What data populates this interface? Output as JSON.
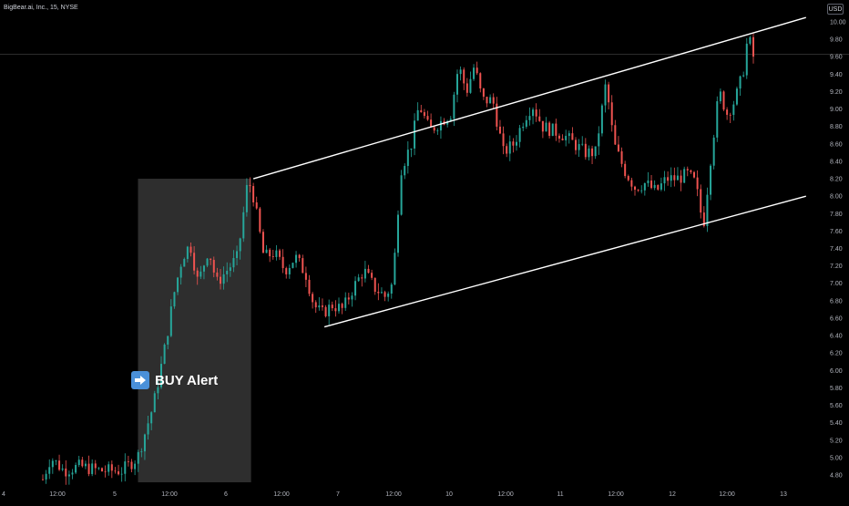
{
  "header": {
    "symbol_title": "BigBear.ai, Inc., 15, NYSE",
    "currency_label": "USD"
  },
  "alert": {
    "label": "BUY Alert",
    "icon": "right-arrow-icon",
    "icon_color": "#4a90d9"
  },
  "colors": {
    "background": "#000000",
    "up": "#26a69a",
    "down": "#ef5350",
    "channel": "#ffffff",
    "highlight_box": "#2e2e2e",
    "axis_text": "#b2b5be"
  },
  "chart_data": {
    "type": "candlestick",
    "title": "",
    "xlabel": "",
    "ylabel": "",
    "ylim": [
      4.7,
      10.15
    ],
    "y_ticks": [
      "10.00",
      "9.80",
      "9.60",
      "9.40",
      "9.20",
      "9.00",
      "8.80",
      "8.60",
      "8.40",
      "8.20",
      "8.00",
      "7.80",
      "7.60",
      "7.40",
      "7.20",
      "7.00",
      "6.80",
      "6.60",
      "6.40",
      "6.20",
      "6.00",
      "5.80",
      "5.60",
      "5.40",
      "5.20",
      "5.00",
      "4.80"
    ],
    "x_ticks": [
      "4",
      "12:00",
      "5",
      "12:00",
      "6",
      "12:00",
      "7",
      "12:00",
      "10",
      "12:00",
      "11",
      "12:00",
      "12",
      "12:00",
      "13"
    ],
    "grid": false,
    "reference_line": 9.63,
    "series": [
      {
        "points": [
          {
            "x": 0,
            "y": 4.75
          },
          {
            "x": 3,
            "y": 5.0
          },
          {
            "x": 8,
            "y": 4.85
          },
          {
            "x": 14,
            "y": 4.9
          },
          {
            "x": 22,
            "y": 4.85
          },
          {
            "x": 30,
            "y": 4.85
          },
          {
            "x": 36,
            "y": 5.0
          },
          {
            "x": 42,
            "y": 5.6
          },
          {
            "x": 46,
            "y": 6.2
          },
          {
            "x": 50,
            "y": 6.9
          },
          {
            "x": 53,
            "y": 7.3
          },
          {
            "x": 56,
            "y": 7.45
          },
          {
            "x": 59,
            "y": 7.0
          },
          {
            "x": 63,
            "y": 7.4
          },
          {
            "x": 66,
            "y": 7.0
          },
          {
            "x": 70,
            "y": 7.15
          },
          {
            "x": 74,
            "y": 7.3
          },
          {
            "x": 78,
            "y": 8.2
          },
          {
            "x": 80,
            "y": 8.0
          },
          {
            "x": 84,
            "y": 7.3
          },
          {
            "x": 88,
            "y": 7.35
          },
          {
            "x": 92,
            "y": 7.15
          },
          {
            "x": 96,
            "y": 7.3
          },
          {
            "x": 100,
            "y": 7.1
          },
          {
            "x": 103,
            "y": 6.75
          },
          {
            "x": 106,
            "y": 6.65
          },
          {
            "x": 110,
            "y": 6.75
          },
          {
            "x": 114,
            "y": 6.7
          },
          {
            "x": 118,
            "y": 6.95
          },
          {
            "x": 122,
            "y": 7.15
          },
          {
            "x": 126,
            "y": 6.95
          },
          {
            "x": 130,
            "y": 6.85
          },
          {
            "x": 133,
            "y": 7.0
          },
          {
            "x": 136,
            "y": 8.3
          },
          {
            "x": 140,
            "y": 8.6
          },
          {
            "x": 143,
            "y": 9.05
          },
          {
            "x": 147,
            "y": 8.75
          },
          {
            "x": 151,
            "y": 8.85
          },
          {
            "x": 155,
            "y": 8.95
          },
          {
            "x": 158,
            "y": 9.5
          },
          {
            "x": 161,
            "y": 9.2
          },
          {
            "x": 164,
            "y": 9.5
          },
          {
            "x": 167,
            "y": 9.1
          },
          {
            "x": 171,
            "y": 9.1
          },
          {
            "x": 175,
            "y": 8.5
          },
          {
            "x": 179,
            "y": 8.6
          },
          {
            "x": 183,
            "y": 8.9
          },
          {
            "x": 186,
            "y": 9.05
          },
          {
            "x": 190,
            "y": 8.8
          },
          {
            "x": 194,
            "y": 8.75
          },
          {
            "x": 198,
            "y": 8.7
          },
          {
            "x": 202,
            "y": 8.6
          },
          {
            "x": 206,
            "y": 8.5
          },
          {
            "x": 210,
            "y": 8.5
          },
          {
            "x": 214,
            "y": 9.3
          },
          {
            "x": 217,
            "y": 8.6
          },
          {
            "x": 221,
            "y": 8.3
          },
          {
            "x": 225,
            "y": 8.1
          },
          {
            "x": 229,
            "y": 8.15
          },
          {
            "x": 233,
            "y": 8.05
          },
          {
            "x": 237,
            "y": 8.2
          },
          {
            "x": 241,
            "y": 8.2
          },
          {
            "x": 245,
            "y": 8.25
          },
          {
            "x": 248,
            "y": 8.15
          },
          {
            "x": 251,
            "y": 7.65
          },
          {
            "x": 254,
            "y": 8.5
          },
          {
            "x": 257,
            "y": 9.2
          },
          {
            "x": 260,
            "y": 8.95
          },
          {
            "x": 263,
            "y": 9.1
          },
          {
            "x": 266,
            "y": 9.4
          },
          {
            "x": 268,
            "y": 9.85
          },
          {
            "x": 270,
            "y": 9.6
          }
        ]
      }
    ],
    "trendlines": [
      {
        "from": {
          "x": 80,
          "y": 8.2
        },
        "to": {
          "x": 290,
          "y": 10.05
        }
      },
      {
        "from": {
          "x": 107,
          "y": 6.5
        },
        "to": {
          "x": 290,
          "y": 8.0
        }
      }
    ],
    "highlight_range": {
      "x0": 36,
      "x1": 80,
      "y0": 4.8,
      "y1": 8.2
    }
  }
}
